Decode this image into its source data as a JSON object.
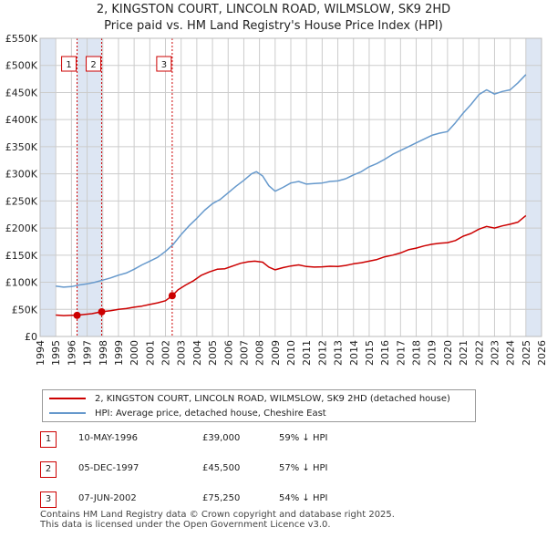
{
  "title_line1": "2, KINGSTON COURT, LINCOLN ROAD, WILMSLOW, SK9 2HD",
  "title_line2": "Price paid vs. HM Land Registry's House Price Index (HPI)",
  "colors": {
    "property": "#cc0000",
    "hpi": "#6699cc",
    "shade": "#dde6f3",
    "grid": "#cccccc",
    "marker_line": "#cc0000"
  },
  "legend": {
    "property": "2, KINGSTON COURT, LINCOLN ROAD, WILMSLOW, SK9 2HD (detached house)",
    "hpi": "HPI: Average price, detached house, Cheshire East"
  },
  "sales": [
    {
      "num": "1",
      "date": "10-MAY-1996",
      "price": "£39,000",
      "hpi": "59% ↓ HPI",
      "x": 1996.36,
      "y": 39000
    },
    {
      "num": "2",
      "date": "05-DEC-1997",
      "price": "£45,500",
      "hpi": "57% ↓ HPI",
      "x": 1997.93,
      "y": 45500
    },
    {
      "num": "3",
      "date": "07-JUN-2002",
      "price": "£75,250",
      "hpi": "54% ↓ HPI",
      "x": 2002.43,
      "y": 75250
    }
  ],
  "footer_line1": "Contains HM Land Registry data © Crown copyright and database right 2025.",
  "footer_line2": "This data is licensed under the Open Government Licence v3.0.",
  "chart_data": {
    "type": "line",
    "title": "2, KINGSTON COURT, LINCOLN ROAD, WILMSLOW, SK9 2HD — Price paid vs. HM Land Registry's House Price Index (HPI)",
    "xlabel": "",
    "ylabel": "",
    "xlim": [
      1994,
      2026
    ],
    "ylim": [
      0,
      550000
    ],
    "x_ticks": [
      1994,
      1995,
      1996,
      1997,
      1998,
      1999,
      2000,
      2001,
      2002,
      2003,
      2004,
      2005,
      2006,
      2007,
      2008,
      2009,
      2010,
      2011,
      2012,
      2013,
      2014,
      2015,
      2016,
      2017,
      2018,
      2019,
      2020,
      2021,
      2022,
      2023,
      2024,
      2025,
      2026
    ],
    "y_ticks": [
      {
        "value": 0,
        "label": "£0"
      },
      {
        "value": 50000,
        "label": "£50K"
      },
      {
        "value": 100000,
        "label": "£100K"
      },
      {
        "value": 150000,
        "label": "£150K"
      },
      {
        "value": 200000,
        "label": "£200K"
      },
      {
        "value": 250000,
        "label": "£250K"
      },
      {
        "value": 300000,
        "label": "£300K"
      },
      {
        "value": 350000,
        "label": "£350K"
      },
      {
        "value": 400000,
        "label": "£400K"
      },
      {
        "value": 450000,
        "label": "£450K"
      },
      {
        "value": 500000,
        "label": "£500K"
      },
      {
        "value": 550000,
        "label": "£550K"
      }
    ],
    "grid": true,
    "shaded_ranges": [
      [
        1994,
        1995
      ],
      [
        1996.36,
        1997.93
      ],
      [
        2025,
        2026
      ]
    ],
    "series": [
      {
        "name": "2, KINGSTON COURT, LINCOLN ROAD, WILMSLOW, SK9 2HD (detached house)",
        "x": [
          1995.0,
          1995.5,
          1996.0,
          1996.36,
          1996.8,
          1997.3,
          1997.93,
          1998.5,
          1999.0,
          1999.5,
          2000.0,
          2000.5,
          2001.0,
          2001.5,
          2002.0,
          2002.43,
          2002.8,
          2003.3,
          2003.8,
          2004.3,
          2004.8,
          2005.3,
          2005.8,
          2006.3,
          2006.8,
          2007.3,
          2007.7,
          2008.2,
          2008.6,
          2009.0,
          2009.5,
          2010.0,
          2010.5,
          2011.0,
          2011.5,
          2012.0,
          2012.5,
          2013.0,
          2013.5,
          2014.0,
          2014.5,
          2015.0,
          2015.5,
          2016.0,
          2016.5,
          2017.0,
          2017.5,
          2018.0,
          2018.5,
          2019.0,
          2019.5,
          2020.0,
          2020.5,
          2021.0,
          2021.5,
          2022.0,
          2022.5,
          2023.0,
          2023.5,
          2024.0,
          2024.5,
          2025.0
        ],
        "y": [
          39500,
          38500,
          39000,
          39000,
          40500,
          42000,
          45500,
          47500,
          50000,
          51500,
          54000,
          56000,
          59000,
          62000,
          66000,
          75250,
          86000,
          95000,
          103000,
          113000,
          119000,
          124000,
          125000,
          130000,
          135000,
          138000,
          139000,
          137000,
          128000,
          123000,
          127000,
          130000,
          132000,
          129000,
          128000,
          128500,
          129500,
          129000,
          131000,
          134000,
          136000,
          139000,
          142000,
          147000,
          150000,
          154000,
          160000,
          163000,
          167000,
          170000,
          172000,
          173000,
          177000,
          185000,
          190000,
          198000,
          203000,
          200000,
          204000,
          207000,
          211000,
          223000
        ]
      },
      {
        "name": "HPI: Average price, detached house, Cheshire East",
        "x": [
          1995.0,
          1995.5,
          1996.0,
          1996.5,
          1997.0,
          1997.5,
          1998.0,
          1998.5,
          1999.0,
          1999.5,
          2000.0,
          2000.5,
          2001.0,
          2001.5,
          2002.0,
          2002.5,
          2003.0,
          2003.5,
          2004.0,
          2004.5,
          2005.0,
          2005.5,
          2006.0,
          2006.5,
          2007.0,
          2007.5,
          2007.8,
          2008.2,
          2008.6,
          2009.0,
          2009.5,
          2010.0,
          2010.5,
          2011.0,
          2011.5,
          2012.0,
          2012.5,
          2013.0,
          2013.5,
          2014.0,
          2014.5,
          2015.0,
          2015.5,
          2016.0,
          2016.5,
          2017.0,
          2017.5,
          2018.0,
          2018.5,
          2019.0,
          2019.5,
          2020.0,
          2020.5,
          2021.0,
          2021.5,
          2022.0,
          2022.5,
          2023.0,
          2023.5,
          2024.0,
          2024.5,
          2025.0
        ],
        "y": [
          93000,
          91000,
          92000,
          95000,
          97000,
          100000,
          104000,
          108000,
          113000,
          117000,
          124000,
          132000,
          139000,
          146000,
          157000,
          170000,
          188000,
          204000,
          218000,
          233000,
          245000,
          253000,
          265000,
          277000,
          288000,
          300000,
          304000,
          296000,
          278000,
          268000,
          275000,
          283000,
          286000,
          281000,
          282000,
          283000,
          286000,
          287000,
          291000,
          298000,
          304000,
          313000,
          319000,
          327000,
          336000,
          343000,
          350000,
          357000,
          364000,
          371000,
          375000,
          378000,
          394000,
          412000,
          428000,
          446000,
          455000,
          447000,
          452000,
          455000,
          468000,
          483000
        ]
      }
    ]
  }
}
